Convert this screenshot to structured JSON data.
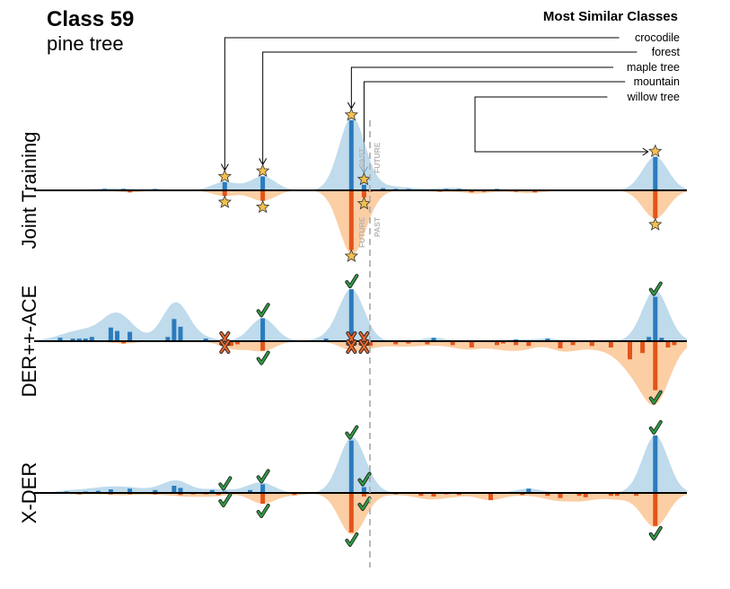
{
  "header": {
    "title": "Class 59",
    "subtitle": "pine tree",
    "legend_title": "Most Similar Classes"
  },
  "split_labels": {
    "past": "PAST",
    "future": "FUTURE"
  },
  "colors": {
    "blue_bar": "#2b7bbd",
    "blue_fill": "#a9cfe6",
    "orange_bar": "#e3541a",
    "orange_fill": "#fbbd86",
    "star": "#f4c04e",
    "check": "#2e9e43",
    "cross": "#e8652d",
    "divider": "#b0b0b0"
  },
  "chart_data": {
    "type": "bar",
    "description_axis": "class index 0-99, upward = similarity to classes seen before (past), downward = similarity to classes seen later (future)",
    "similar_classes": [
      {
        "name": "crocodile",
        "class_index": 27
      },
      {
        "name": "forest",
        "class_index": 33
      },
      {
        "name": "maple tree",
        "class_index": 47
      },
      {
        "name": "mountain",
        "class_index": 49
      },
      {
        "name": "willow tree",
        "class_index": 95
      }
    ],
    "current_class_index": 49.5,
    "panels": [
      {
        "name": "Joint Training",
        "marker": "star",
        "past": [
          [
            4,
            0.01
          ],
          [
            8,
            0.02
          ],
          [
            11,
            0.02
          ],
          [
            16,
            0.02
          ],
          [
            27,
            0.12
          ],
          [
            33,
            0.2
          ],
          [
            47,
            1.0
          ],
          [
            49,
            0.08
          ],
          [
            52,
            0.03
          ],
          [
            54,
            0.02
          ],
          [
            56,
            0.02
          ],
          [
            59,
            0.01
          ],
          [
            62,
            0.02
          ],
          [
            64,
            0.02
          ],
          [
            70,
            0.02
          ],
          [
            95,
            0.48
          ]
        ],
        "future": [
          [
            12,
            0.03
          ],
          [
            27,
            0.08
          ],
          [
            33,
            0.15
          ],
          [
            47,
            0.85
          ],
          [
            49,
            0.1
          ],
          [
            50,
            0.02
          ],
          [
            61,
            0.02
          ],
          [
            66,
            0.03
          ],
          [
            68,
            0.02
          ],
          [
            73,
            0.02
          ],
          [
            76,
            0.03
          ],
          [
            95,
            0.4
          ]
        ],
        "markers_past": [
          27,
          33,
          47,
          49,
          95
        ],
        "markers_future": [
          27,
          33,
          47,
          49,
          95
        ]
      },
      {
        "name": "DER++-ACE",
        "marker": "check",
        "past": [
          [
            1,
            0.04
          ],
          [
            3,
            0.03
          ],
          [
            4,
            0.03
          ],
          [
            5,
            0.03
          ],
          [
            6,
            0.05
          ],
          [
            9,
            0.16
          ],
          [
            10,
            0.12
          ],
          [
            12,
            0.11
          ],
          [
            18,
            0.05
          ],
          [
            19,
            0.26
          ],
          [
            20,
            0.17
          ],
          [
            24,
            0.03
          ],
          [
            33,
            0.27
          ],
          [
            43,
            0.03
          ],
          [
            47,
            0.61
          ],
          [
            60,
            0.04
          ],
          [
            73,
            0.02
          ],
          [
            78,
            0.03
          ],
          [
            94,
            0.05
          ],
          [
            95,
            0.52
          ],
          [
            96,
            0.04
          ]
        ],
        "future": [
          [
            11,
            0.03
          ],
          [
            28,
            0.06
          ],
          [
            29,
            0.04
          ],
          [
            33,
            0.12
          ],
          [
            47,
            0.1
          ],
          [
            50,
            0.06
          ],
          [
            54,
            0.04
          ],
          [
            56,
            0.03
          ],
          [
            59,
            0.04
          ],
          [
            63,
            0.05
          ],
          [
            66,
            0.08
          ],
          [
            70,
            0.05
          ],
          [
            71,
            0.03
          ],
          [
            73,
            0.05
          ],
          [
            75,
            0.06
          ],
          [
            80,
            0.09
          ],
          [
            82,
            0.05
          ],
          [
            85,
            0.06
          ],
          [
            88,
            0.08
          ],
          [
            91,
            0.23
          ],
          [
            93,
            0.15
          ],
          [
            95,
            0.62
          ],
          [
            97,
            0.08
          ],
          [
            98,
            0.05
          ]
        ],
        "markers_past": [
          33,
          47,
          95
        ],
        "markers_future": [
          33,
          95
        ],
        "crosses": [
          27,
          47,
          49
        ]
      },
      {
        "name": "X-DER",
        "marker": "check",
        "past": [
          [
            2,
            0.02
          ],
          [
            3,
            0.01
          ],
          [
            5,
            0.02
          ],
          [
            7,
            0.03
          ],
          [
            9,
            0.05
          ],
          [
            12,
            0.06
          ],
          [
            16,
            0.04
          ],
          [
            19,
            0.1
          ],
          [
            20,
            0.07
          ],
          [
            25,
            0.04
          ],
          [
            27,
            0.02
          ],
          [
            31,
            0.04
          ],
          [
            33,
            0.12
          ],
          [
            47,
            0.73
          ],
          [
            49,
            0.08
          ],
          [
            75,
            0.06
          ],
          [
            95,
            0.8
          ]
        ],
        "future": [
          [
            4,
            0.02
          ],
          [
            9,
            0.02
          ],
          [
            12,
            0.02
          ],
          [
            16,
            0.02
          ],
          [
            20,
            0.03
          ],
          [
            22,
            0.02
          ],
          [
            24,
            0.02
          ],
          [
            26,
            0.03
          ],
          [
            33,
            0.15
          ],
          [
            38,
            0.03
          ],
          [
            47,
            0.55
          ],
          [
            49,
            0.05
          ],
          [
            54,
            0.02
          ],
          [
            58,
            0.04
          ],
          [
            60,
            0.05
          ],
          [
            62,
            0.02
          ],
          [
            64,
            0.03
          ],
          [
            69,
            0.1
          ],
          [
            74,
            0.03
          ],
          [
            78,
            0.04
          ],
          [
            80,
            0.07
          ],
          [
            83,
            0.04
          ],
          [
            84,
            0.06
          ],
          [
            88,
            0.04
          ],
          [
            89,
            0.04
          ],
          [
            92,
            0.04
          ],
          [
            95,
            0.46
          ]
        ],
        "markers_past": [
          27,
          33,
          47,
          49,
          95
        ],
        "markers_future": [
          27,
          33,
          47,
          49,
          95
        ]
      }
    ]
  }
}
